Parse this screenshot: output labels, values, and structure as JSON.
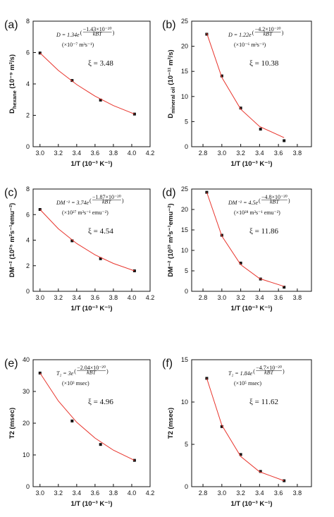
{
  "chart_data": [
    {
      "type": "scatter",
      "panel": "(a)",
      "xlabel": "1/T (10⁻³ K⁻¹)",
      "ylabel": "D",
      "ylabel_sub": "hexane",
      "ylabel_rest": " (10⁻⁹ m²/s)",
      "xlim": [
        2.925,
        4.2
      ],
      "xticks": [
        {
          "value": 3,
          "label": "3.0"
        },
        3.2,
        3.4,
        3.6,
        3.8,
        {
          "value": 4,
          "label": "4.0"
        },
        4.2
      ],
      "ylim": [
        0,
        8
      ],
      "yticks": [
        0,
        2,
        4,
        6,
        8
      ],
      "equation": {
        "prefix": "D = 1.34e",
        "numerator": "−1.43×10⁻²⁰",
        "denominator": "kBT"
      },
      "units": "(×10⁻⁷ m²s⁻¹)",
      "xi": "ξ = 3.48",
      "series": [
        {
          "color": "#111111",
          "x": [
            3.0,
            3.35,
            3.66,
            4.03
          ],
          "values": [
            5.97,
            4.22,
            2.97,
            2.08
          ]
        },
        {
          "color": "#e8342c",
          "x": [
            3.0,
            3.2,
            3.4,
            3.6,
            3.8,
            4.03
          ],
          "values": [
            5.97,
            4.86,
            3.96,
            3.22,
            2.62,
            2.08
          ]
        }
      ]
    },
    {
      "type": "scatter",
      "panel": "(b)",
      "xlabel": "1/T (10⁻³ K⁻¹)",
      "ylabel": "D",
      "ylabel_sub": "mineral oil",
      "ylabel_rest": " (10⁻¹¹ m²/s)",
      "xlim": [
        2.68,
        3.95
      ],
      "xticks": [
        2.8,
        {
          "value": 3,
          "label": "3.0"
        },
        3.2,
        3.4,
        3.6,
        3.8
      ],
      "ylim": [
        0,
        25
      ],
      "yticks": [
        0,
        5,
        10,
        15,
        20,
        25
      ],
      "equation": {
        "prefix": "D = 1.22e",
        "numerator": "−4.2×10⁻²⁰",
        "denominator": "kBT"
      },
      "units": "(×10⁻⁶ m²s⁻¹)",
      "xi": "ξ = 10.38",
      "series": [
        {
          "color": "#111111",
          "x": [
            2.84,
            3.0,
            3.2,
            3.41,
            3.66
          ],
          "values": [
            22.4,
            14.1,
            7.7,
            3.5,
            1.2
          ]
        },
        {
          "color": "#e8342c",
          "x": [
            2.84,
            3.0,
            3.2,
            3.4,
            3.66
          ],
          "values": [
            22.6,
            13.8,
            7.47,
            4.03,
            1.8
          ]
        }
      ]
    },
    {
      "type": "scatter",
      "panel": "(c)",
      "xlabel": "1/T (10⁻³ K⁻¹)",
      "ylabel": "DM⁻² (10²⁵ m²s⁻¹emu⁻²)",
      "xlim": [
        2.925,
        4.2
      ],
      "xticks": [
        {
          "value": 3,
          "label": "3.0"
        },
        3.2,
        3.4,
        3.6,
        3.8,
        {
          "value": 4,
          "label": "4.0"
        },
        4.2
      ],
      "ylim": [
        0,
        8
      ],
      "yticks": [
        0,
        2,
        4,
        6,
        8
      ],
      "equation": {
        "prefix": "DM⁻² = 3.74e",
        "numerator": "−1.87×10⁻²⁰",
        "denominator": "kBT"
      },
      "units": "(×10²⁷ m²s⁻¹ emu⁻²)",
      "xi": "ξ = 4.54",
      "series": [
        {
          "color": "#111111",
          "x": [
            3.0,
            3.35,
            3.66,
            4.03
          ],
          "values": [
            6.4,
            3.95,
            2.55,
            1.6
          ]
        },
        {
          "color": "#e8342c",
          "x": [
            3.0,
            3.2,
            3.4,
            3.6,
            3.8,
            4.03
          ],
          "values": [
            6.4,
            4.89,
            3.74,
            2.85,
            2.18,
            1.6
          ]
        }
      ]
    },
    {
      "type": "scatter",
      "panel": "(d)",
      "xlabel": "1/T (10⁻³ K⁻¹)",
      "ylabel": "DM⁻² (10²³ m²s⁻¹emu⁻²)",
      "xlim": [
        2.68,
        3.95
      ],
      "xticks": [
        2.8,
        {
          "value": 3,
          "label": "3.0"
        },
        3.2,
        3.4,
        3.6,
        3.8
      ],
      "ylim": [
        0,
        25
      ],
      "yticks": [
        0,
        5,
        10,
        15,
        20,
        25
      ],
      "equation": {
        "prefix": "DM⁻² = 4.5e",
        "numerator": "−4.8×10⁻²⁰",
        "denominator": "kBT"
      },
      "units": "(×10²⁸ m²s⁻¹ emu⁻²)",
      "xi": "ξ = 11.86",
      "series": [
        {
          "color": "#111111",
          "x": [
            2.84,
            3.0,
            3.2,
            3.41,
            3.66
          ],
          "values": [
            24.2,
            13.7,
            6.9,
            3.0,
            1.0
          ]
        },
        {
          "color": "#e8342c",
          "x": [
            2.84,
            3.0,
            3.2,
            3.4,
            3.66
          ],
          "values": [
            24.2,
            13.5,
            6.5,
            3.11,
            1.2
          ]
        }
      ]
    },
    {
      "type": "scatter",
      "panel": "(e)",
      "xlabel": "1/T (10⁻³ K⁻¹)",
      "ylabel": "T2 (msec)",
      "xlim": [
        2.925,
        4.2
      ],
      "xticks": [
        {
          "value": 3,
          "label": "3.0"
        },
        3.2,
        3.4,
        3.6,
        3.8,
        {
          "value": 4,
          "label": "4.0"
        },
        4.2
      ],
      "ylim": [
        0,
        40
      ],
      "yticks": [
        0,
        10,
        20,
        30,
        40
      ],
      "equation": {
        "prefix": "T₂ = 3e",
        "numerator": "−2.04×10⁻²⁰",
        "denominator": "kBT"
      },
      "units": "(×10³ msec)",
      "xi": "ξ = 4.96",
      "series": [
        {
          "color": "#111111",
          "x": [
            3.0,
            3.35,
            3.66,
            4.03
          ],
          "values": [
            35.8,
            20.7,
            13.3,
            8.3
          ]
        },
        {
          "color": "#e8342c",
          "x": [
            3.0,
            3.2,
            3.4,
            3.6,
            3.8,
            4.03
          ],
          "values": [
            35.8,
            27.0,
            20.3,
            15.3,
            11.5,
            8.3
          ]
        }
      ]
    },
    {
      "type": "scatter",
      "panel": "(f)",
      "xlabel": "1/T (10⁻³ K⁻¹)",
      "ylabel": "T2 (msec)",
      "xlim": [
        2.68,
        3.95
      ],
      "xticks": [
        2.8,
        {
          "value": 3,
          "label": "3.0"
        },
        3.2,
        3.4,
        3.6,
        3.8
      ],
      "ylim": [
        0,
        15
      ],
      "yticks": [
        0,
        5,
        10,
        15
      ],
      "equation": {
        "prefix": "T₂ = 1.84e",
        "numerator": "−4.7×10⁻²⁰",
        "denominator": "kBT"
      },
      "units": "(×10⁵ msec)",
      "xi": "ξ = 11.62",
      "series": [
        {
          "color": "#111111",
          "x": [
            2.84,
            3.0,
            3.2,
            3.41,
            3.66
          ],
          "values": [
            12.8,
            7.1,
            3.8,
            1.8,
            0.7
          ]
        },
        {
          "color": "#e8342c",
          "x": [
            2.84,
            3.0,
            3.2,
            3.4,
            3.66
          ],
          "values": [
            12.8,
            7.26,
            3.57,
            1.76,
            0.7
          ]
        }
      ]
    }
  ]
}
